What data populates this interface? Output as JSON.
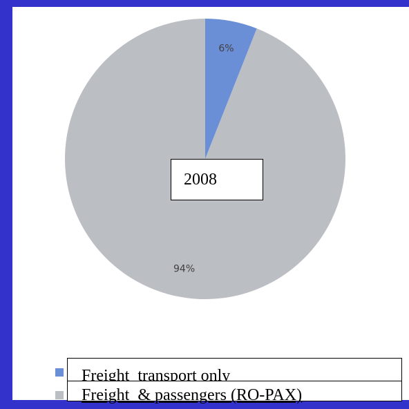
{
  "chart_data": {
    "type": "pie",
    "categories": [
      "Freight  transport only",
      "Freight  & passengers (RO-PAX)"
    ],
    "values": [
      6,
      94
    ],
    "value_labels": [
      "6%",
      "94%"
    ],
    "colors": [
      "#6a8fd6",
      "#bbbec3"
    ],
    "annotation": "2008"
  }
}
